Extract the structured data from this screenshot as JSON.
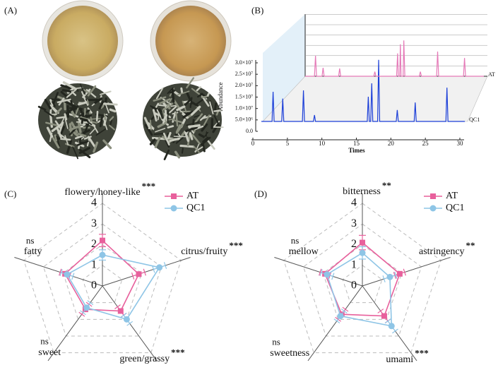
{
  "photo_panel": {
    "label": "(A)"
  },
  "chart_data": [
    {
      "type": "chromatogram",
      "panel_label": "(B)",
      "x_label": "Times",
      "y_label": "Abundance",
      "xlim": [
        0,
        30
      ],
      "xticks": [
        0,
        5,
        10,
        15,
        20,
        25,
        30
      ],
      "ylim": [
        0,
        30000000
      ],
      "yticks": [
        {
          "value": 0,
          "label": "0.0"
        },
        {
          "value": 5000000,
          "label": "5.0×10⁶"
        },
        {
          "value": 10000000,
          "label": "1.0×10⁷"
        },
        {
          "value": 15000000,
          "label": "1.5×10⁷"
        },
        {
          "value": 20000000,
          "label": "2.0×10⁷"
        },
        {
          "value": 25000000,
          "label": "2.5×10⁷"
        },
        {
          "value": 30000000,
          "label": "3.0×10⁷"
        }
      ],
      "series": [
        {
          "name": "QC1",
          "color": "#1c3fd8",
          "x": [
            0,
            1.55,
            1.7,
            1.85,
            2.95,
            3.1,
            3.25,
            5.95,
            6.1,
            6.25,
            7.55,
            7.7,
            7.85,
            15.35,
            15.5,
            15.65,
            15.85,
            16.0,
            16.15,
            16.85,
            17.0,
            17.15,
            19.55,
            19.7,
            19.85,
            22.15,
            22.3,
            22.45,
            26.75,
            26.9,
            27.05,
            29.5
          ],
          "values": [
            0,
            0,
            13000000,
            0,
            0,
            10000000,
            0,
            0,
            13600000,
            0,
            0,
            2800000,
            0,
            0,
            10800000,
            0,
            0,
            16700000,
            0,
            0,
            27000000,
            0,
            0,
            5000000,
            0,
            0,
            8300000,
            0,
            0,
            14800000,
            0,
            0
          ]
        },
        {
          "name": "AT",
          "color": "#e57ab8",
          "x": [
            0,
            1.35,
            1.5,
            1.65,
            2.45,
            2.6,
            2.75,
            4.85,
            5.0,
            5.15,
            9.95,
            10.1,
            10.25,
            13.25,
            13.4,
            13.5,
            13.7,
            13.8,
            13.9,
            14.2,
            14.3,
            14.45,
            16.55,
            16.7,
            16.85,
            19.05,
            19.2,
            19.35,
            22.95,
            23.1,
            23.25,
            25.9
          ],
          "values": [
            0,
            0,
            9000000,
            0,
            0,
            3700000,
            0,
            0,
            3400000,
            0,
            0,
            2000000,
            0,
            0,
            10000000,
            0,
            0,
            14000000,
            0,
            0,
            15700000,
            0,
            0,
            2000000,
            0,
            0,
            10800000,
            0,
            0,
            8000000,
            0,
            0
          ]
        }
      ]
    },
    {
      "type": "radar",
      "panel_label": "(C)",
      "categories": [
        "flowery/honey-like",
        "citrus/fruity",
        "green/grassy",
        "sweet",
        "fatty"
      ],
      "significance": [
        "***",
        "***",
        "***",
        "ns",
        "ns"
      ],
      "rlim": [
        0,
        4
      ],
      "rticks": [
        0,
        1,
        2,
        3,
        4
      ],
      "grid": true,
      "legend": "upper right",
      "series": [
        {
          "name": "AT",
          "color": "#e8609c",
          "marker": "square",
          "values": [
            2.2,
            1.85,
            1.5,
            1.4,
            1.9
          ],
          "errors": [
            0.3,
            0.3,
            0.25,
            0.3,
            0.25
          ]
        },
        {
          "name": "QC1",
          "color": "#8ec5e6",
          "marker": "circle",
          "values": [
            1.5,
            2.9,
            2.0,
            1.3,
            1.8
          ],
          "errors": [
            0.25,
            0.3,
            0.25,
            0.3,
            0.3
          ]
        }
      ]
    },
    {
      "type": "radar",
      "panel_label": "(D)",
      "categories": [
        "bitterness",
        "astringency",
        "umami",
        "sweetness",
        "mellow"
      ],
      "significance": [
        "**",
        "**",
        "***",
        "ns",
        "ns"
      ],
      "rlim": [
        0,
        4
      ],
      "rticks": [
        0,
        1,
        2,
        3,
        4
      ],
      "grid": true,
      "legend": "upper right",
      "series": [
        {
          "name": "AT",
          "color": "#e8609c",
          "marker": "square",
          "values": [
            2.1,
            1.9,
            1.8,
            1.7,
            1.9
          ],
          "errors": [
            0.35,
            0.25,
            0.3,
            0.3,
            0.25
          ]
        },
        {
          "name": "QC1",
          "color": "#8ec5e6",
          "marker": "circle",
          "values": [
            1.6,
            1.4,
            2.4,
            1.8,
            1.8
          ],
          "errors": [
            0.3,
            0.3,
            0.3,
            0.3,
            0.3
          ]
        }
      ]
    }
  ]
}
